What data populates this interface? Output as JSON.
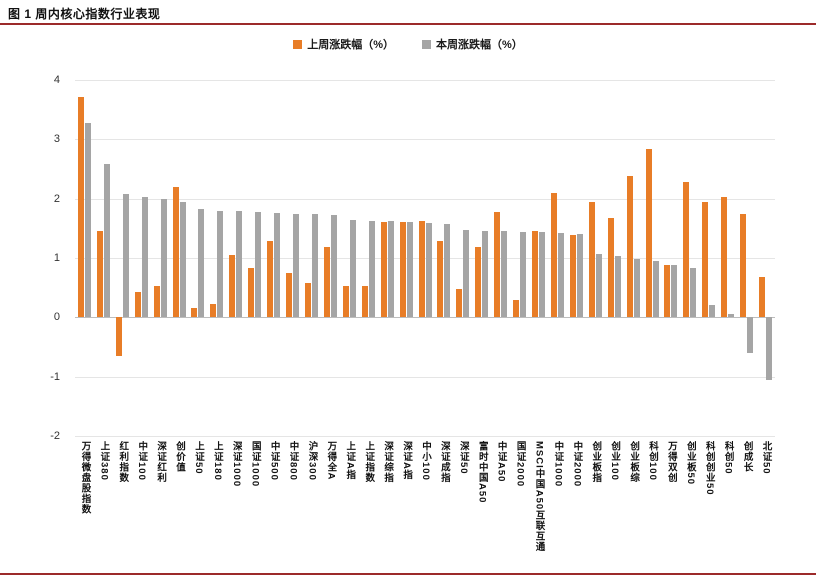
{
  "page": {
    "figure_caption": "图 1  周内核心指数行业表现",
    "accent_color": "#9C2A2A",
    "background_color": "#ffffff"
  },
  "chart_data": {
    "type": "bar",
    "title": "图 1  周内核心指数行业表现",
    "categories": [
      "万得微盘股指数",
      "上证380",
      "红利指数",
      "中证100",
      "深证红利",
      "创价值",
      "上证50",
      "上证180",
      "深证1000",
      "国证1000",
      "中证500",
      "中证800",
      "沪深300",
      "万得全A",
      "上证A指",
      "上证指数",
      "深证综指",
      "深证A指",
      "中小100",
      "深证成指",
      "深证50",
      "富时中国A50",
      "中证A50",
      "国证2000",
      "MSCI中国A50互联互通",
      "中证1000",
      "中证2000",
      "创业板指",
      "创业100",
      "创业板综",
      "科创100",
      "万得双创",
      "创业板50",
      "科创创业50",
      "科创50",
      "创成长",
      "北证50"
    ],
    "series": [
      {
        "name": "上周涨跌幅（%）",
        "color": "#E87D27",
        "values": [
          3.72,
          1.45,
          -0.65,
          0.42,
          0.52,
          2.2,
          0.15,
          0.23,
          1.05,
          0.83,
          1.28,
          0.75,
          0.58,
          1.18,
          0.53,
          0.53,
          1.6,
          1.6,
          1.62,
          1.28,
          0.48,
          1.18,
          1.78,
          0.3,
          1.45,
          2.1,
          1.38,
          1.95,
          1.68,
          2.38,
          2.83,
          0.88,
          2.28,
          1.95,
          2.02,
          1.75,
          0.68
        ]
      },
      {
        "name": "本周涨跌幅（%）",
        "color": "#A5A5A5",
        "values": [
          3.28,
          2.58,
          2.08,
          2.03,
          2.0,
          1.95,
          1.83,
          1.8,
          1.79,
          1.77,
          1.76,
          1.75,
          1.74,
          1.72,
          1.64,
          1.63,
          1.62,
          1.6,
          1.59,
          1.57,
          1.47,
          1.46,
          1.45,
          1.44,
          1.43,
          1.42,
          1.4,
          1.06,
          1.04,
          0.98,
          0.95,
          0.88,
          0.83,
          0.2,
          0.05,
          -0.6,
          -1.05
        ]
      }
    ],
    "ylim": [
      -2,
      4
    ],
    "yticks": [
      4,
      3,
      2,
      1,
      0,
      -1,
      -2
    ],
    "grid": true,
    "legend_position": "top",
    "xlabel": "",
    "ylabel": ""
  }
}
